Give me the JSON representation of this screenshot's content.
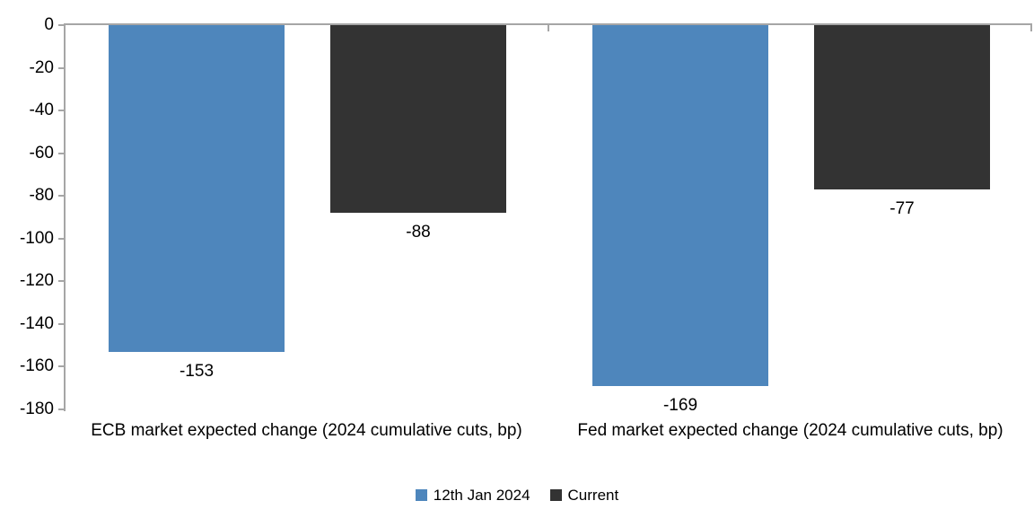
{
  "chart_data": {
    "type": "bar",
    "title": "",
    "categories": [
      "ECB market expected change (2024 cumulative cuts, bp)",
      "Fed market expected change (2024 cumulative cuts, bp)"
    ],
    "series": [
      {
        "name": "12th Jan 2024",
        "color": "#4E86BC",
        "values": [
          -153,
          -169
        ]
      },
      {
        "name": "Current",
        "color": "#333333",
        "values": [
          -88,
          -77
        ]
      }
    ],
    "data_labels": {
      "12th Jan 2024": [
        "-153",
        "-169"
      ],
      "Current": [
        "-88",
        "-77"
      ]
    },
    "y_axis": {
      "min": -180,
      "max": 0,
      "tick_interval": 20,
      "tick_labels": [
        "0",
        "-20",
        "-40",
        "-60",
        "-80",
        "-100",
        "-120",
        "-140",
        "-160",
        "-180"
      ]
    },
    "grid": false,
    "legend_position": "bottom",
    "axis_color": "#A6A6A6",
    "text_color": "#000000",
    "background_color": "#FFFFFF"
  }
}
